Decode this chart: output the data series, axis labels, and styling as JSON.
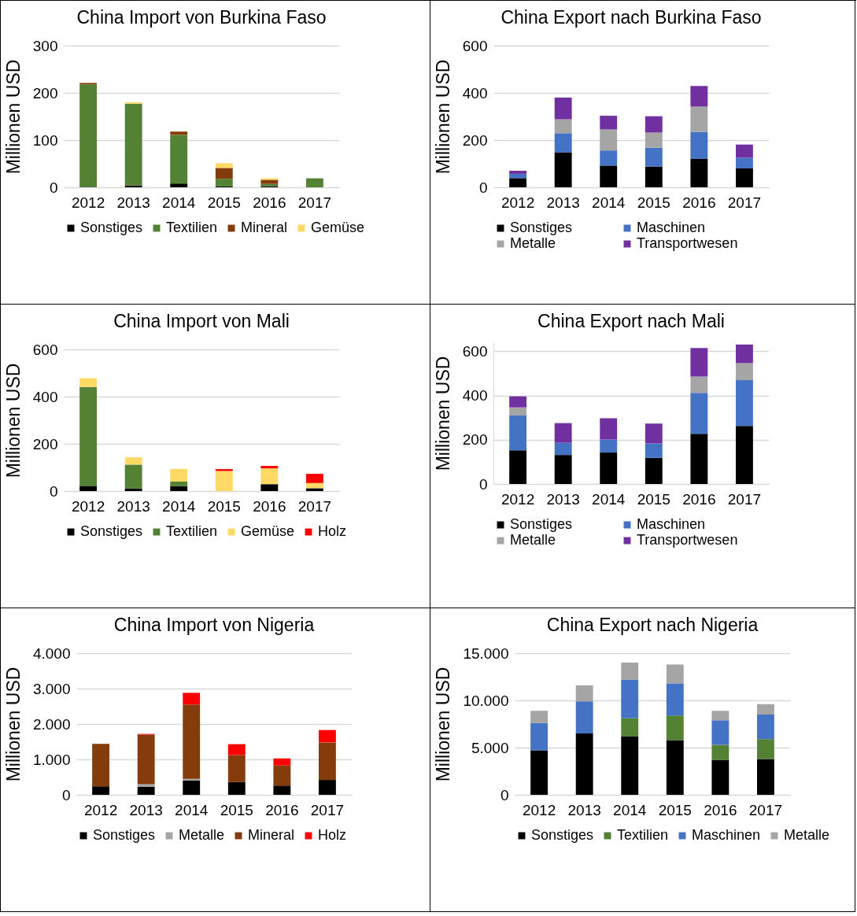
{
  "chart_data": [
    {
      "type": "bar",
      "title": "China Import von Burkina Faso",
      "ylabel": "Millionen USD",
      "categories": [
        "2012",
        "2013",
        "2014",
        "2015",
        "2016",
        "2017"
      ],
      "stacked": true,
      "ylim": [
        0,
        300
      ],
      "yticks": [
        0,
        100,
        200,
        300
      ],
      "grid": "y",
      "legend": "bottom",
      "series": [
        {
          "name": "Sonstiges",
          "color": "#000000",
          "values": [
            1,
            4,
            8,
            2,
            2,
            0
          ]
        },
        {
          "name": "Textilien",
          "color": "#548235",
          "values": [
            217,
            173,
            103,
            16,
            5,
            19
          ]
        },
        {
          "name": "Mineral",
          "color": "#843c0c",
          "values": [
            3,
            0,
            7,
            23,
            9,
            0
          ]
        },
        {
          "name": "Gemüse",
          "color": "#ffd966",
          "values": [
            0,
            3,
            0,
            10,
            3,
            0
          ]
        }
      ]
    },
    {
      "type": "bar",
      "title": "China Export nach Burkina Faso",
      "ylabel": "Millionen USD",
      "categories": [
        "2012",
        "2013",
        "2014",
        "2015",
        "2016",
        "2017"
      ],
      "stacked": true,
      "ylim": [
        0,
        600
      ],
      "yticks": [
        0,
        200,
        400,
        600
      ],
      "grid": "y",
      "legend": "bottom",
      "series": [
        {
          "name": "Sonstiges",
          "color": "#000000",
          "values": [
            39,
            148,
            92,
            88,
            120,
            80
          ]
        },
        {
          "name": "Maschinen",
          "color": "#4472c4",
          "values": [
            18,
            81,
            64,
            80,
            115,
            45
          ]
        },
        {
          "name": "Metalle",
          "color": "#a5a5a5",
          "values": [
            0,
            59,
            89,
            64,
            107,
            0
          ]
        },
        {
          "name": "Transportwesen",
          "color": "#7030a0",
          "values": [
            13,
            92,
            58,
            69,
            87,
            56
          ]
        }
      ]
    },
    {
      "type": "bar",
      "title": "China Import von Mali",
      "ylabel": "Millionen USD",
      "categories": [
        "2012",
        "2013",
        "2014",
        "2015",
        "2016",
        "2017"
      ],
      "stacked": true,
      "ylim": [
        0,
        600
      ],
      "yticks": [
        0,
        200,
        400,
        600
      ],
      "grid": "y",
      "legend": "bottom",
      "series": [
        {
          "name": "Sonstiges",
          "color": "#000000",
          "values": [
            22,
            11,
            21,
            0,
            29,
            12
          ]
        },
        {
          "name": "Textilien",
          "color": "#548235",
          "values": [
            419,
            101,
            19,
            0,
            0,
            0
          ]
        },
        {
          "name": "Gemüse",
          "color": "#ffd966",
          "values": [
            37,
            31,
            54,
            85,
            67,
            22
          ]
        },
        {
          "name": "Holz",
          "color": "#ff0000",
          "values": [
            0,
            0,
            0,
            8,
            11,
            39
          ]
        }
      ]
    },
    {
      "type": "bar",
      "title": "China Export nach Mali",
      "ylabel": "Millionen USD",
      "categories": [
        "2012",
        "2013",
        "2014",
        "2015",
        "2016",
        "2017"
      ],
      "stacked": true,
      "ylim": [
        0,
        640
      ],
      "yticks": [
        0,
        200,
        400,
        600
      ],
      "grid": "y",
      "legend": "bottom",
      "series": [
        {
          "name": "Sonstiges",
          "color": "#000000",
          "values": [
            152,
            131,
            142,
            118,
            227,
            262
          ]
        },
        {
          "name": "Maschinen",
          "color": "#4472c4",
          "values": [
            159,
            55,
            59,
            65,
            185,
            207
          ]
        },
        {
          "name": "Metalle",
          "color": "#a5a5a5",
          "values": [
            35,
            0,
            0,
            0,
            73,
            77
          ]
        },
        {
          "name": "Transportwesen",
          "color": "#7030a0",
          "values": [
            50,
            89,
            96,
            90,
            129,
            84
          ]
        }
      ]
    },
    {
      "type": "bar",
      "title": "China Import von Nigeria",
      "ylabel": "Millionen USD",
      "categories": [
        "2012",
        "2013",
        "2014",
        "2015",
        "2016",
        "2017"
      ],
      "stacked": true,
      "ylim": [
        0,
        4000
      ],
      "yticks": [
        0,
        {
          "value": 1000,
          "label": "1.000"
        },
        {
          "value": 2000,
          "label": "2.000"
        },
        {
          "value": 3000,
          "label": "3.000"
        },
        {
          "value": 4000,
          "label": "4.000"
        }
      ],
      "grid": "y",
      "legend": "bottom",
      "series": [
        {
          "name": "Sonstiges",
          "color": "#000000",
          "values": [
            240,
            230,
            400,
            360,
            260,
            420
          ]
        },
        {
          "name": "Metalle",
          "color": "#a5a5a5",
          "values": [
            0,
            70,
            50,
            0,
            0,
            0
          ]
        },
        {
          "name": "Mineral",
          "color": "#843c0c",
          "values": [
            1200,
            1400,
            2100,
            760,
            570,
            1060
          ]
        },
        {
          "name": "Holz",
          "color": "#ff0000",
          "values": [
            0,
            20,
            330,
            310,
            200,
            350
          ]
        }
      ]
    },
    {
      "type": "bar",
      "title": "China Export nach Nigeria",
      "ylabel": "Millionen USD",
      "categories": [
        "2012",
        "2013",
        "2014",
        "2015",
        "2016",
        "2017"
      ],
      "stacked": true,
      "ylim": [
        0,
        15000
      ],
      "yticks": [
        0,
        {
          "value": 5000,
          "label": "5.000"
        },
        {
          "value": 10000,
          "label": "10.000"
        },
        {
          "value": 15000,
          "label": "15.000"
        }
      ],
      "grid": "y",
      "legend": "bottom",
      "series": [
        {
          "name": "Sonstiges",
          "color": "#000000",
          "values": [
            4700,
            6500,
            6200,
            5800,
            3700,
            3800
          ]
        },
        {
          "name": "Textilien",
          "color": "#548235",
          "values": [
            0,
            0,
            1900,
            2600,
            1600,
            2100
          ]
        },
        {
          "name": "Maschinen",
          "color": "#4472c4",
          "values": [
            2900,
            3400,
            4100,
            3400,
            2600,
            2600
          ]
        },
        {
          "name": "Metalle",
          "color": "#a5a5a5",
          "values": [
            1300,
            1700,
            1800,
            2000,
            1000,
            1100
          ]
        }
      ]
    }
  ]
}
